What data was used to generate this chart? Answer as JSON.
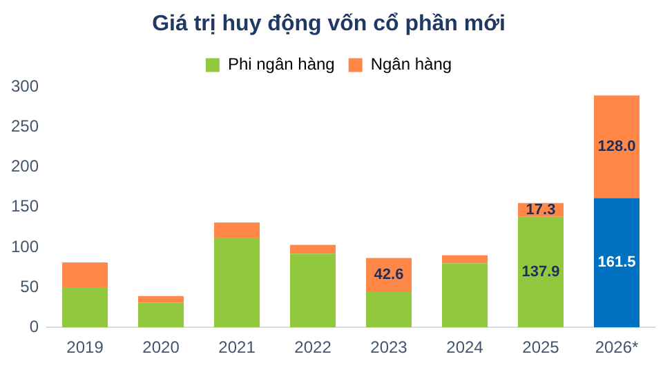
{
  "chart_data": {
    "type": "bar",
    "title": "Giá trị huy động vốn cổ phần mới",
    "stacked": true,
    "legend": "top",
    "categories": [
      "2019",
      "2020",
      "2021",
      "2022",
      "2023",
      "2024",
      "2025",
      "2026*"
    ],
    "series": [
      {
        "name": "Phi ngân hàng",
        "color": "#92c83e",
        "colors": [
          "#92c83e",
          "#92c83e",
          "#92c83e",
          "#92c83e",
          "#92c83e",
          "#92c83e",
          "#92c83e",
          "#0070c0"
        ],
        "values": [
          50,
          31,
          112,
          92,
          44,
          80,
          137.9,
          161.5
        ],
        "value_labels": [
          null,
          null,
          null,
          null,
          null,
          null,
          "137.9",
          "161.5"
        ]
      },
      {
        "name": "Ngân hàng",
        "color": "#ff8849",
        "values": [
          31,
          8,
          19,
          11,
          42.6,
          10,
          17.3,
          128
        ],
        "value_labels": [
          null,
          null,
          null,
          null,
          "42.6",
          null,
          "17.3",
          "128.0"
        ]
      }
    ],
    "ylim": [
      0,
      300
    ],
    "yticks": [
      0,
      50,
      100,
      150,
      200,
      250,
      300
    ],
    "grid": false
  }
}
